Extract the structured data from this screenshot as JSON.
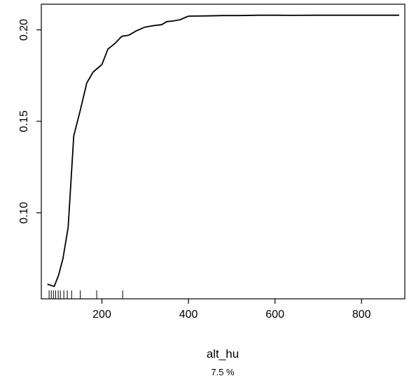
{
  "chart_data": {
    "type": "line",
    "title": "",
    "xlabel": "alt_hu",
    "ylabel": "",
    "subtitle": "7.5 %",
    "xlim": [
      60,
      900
    ],
    "ylim": [
      0.053,
      0.214
    ],
    "x_ticks": [
      200,
      400,
      600,
      800
    ],
    "y_ticks": [
      0.1,
      0.15,
      0.2
    ],
    "x_tick_labels": [
      "200",
      "400",
      "600",
      "800"
    ],
    "y_tick_labels": [
      "0.10",
      "0.15",
      "0.20"
    ],
    "grid": false,
    "series": [
      {
        "x": [
          74,
          90,
          100,
          110,
          122,
          135,
          150,
          165,
          180,
          200,
          214,
          230,
          246,
          262,
          280,
          300,
          320,
          338,
          350,
          364,
          380,
          400,
          440,
          480,
          520,
          560,
          600,
          640,
          700,
          760,
          820,
          887
        ],
        "y": [
          0.061,
          0.0598,
          0.066,
          0.075,
          0.092,
          0.142,
          0.156,
          0.171,
          0.177,
          0.181,
          0.1895,
          0.1925,
          0.1965,
          0.197,
          0.1995,
          0.2015,
          0.2023,
          0.2028,
          0.2045,
          0.2048,
          0.2055,
          0.2075,
          0.2076,
          0.2078,
          0.2078,
          0.208,
          0.208,
          0.2079,
          0.208,
          0.208,
          0.208,
          0.208
        ]
      }
    ],
    "rug_x": [
      78,
      83,
      88,
      93,
      99,
      104,
      112,
      120,
      130,
      150,
      188,
      248
    ]
  }
}
